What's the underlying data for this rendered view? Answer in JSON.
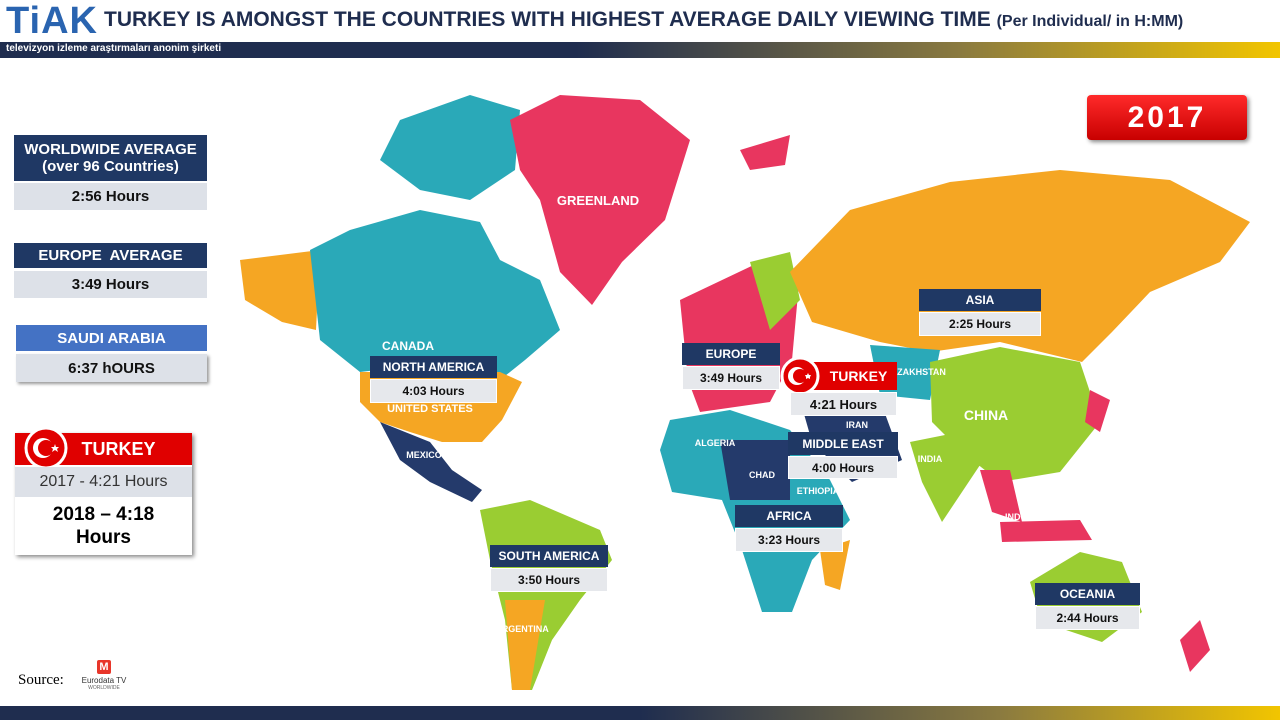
{
  "header": {
    "logo": "TiAK",
    "logo_subtitle": "televizyon izleme araştırmaları anonim şirketi",
    "title": "TURKEY IS AMONGST THE COUNTRIES WITH HIGHEST AVERAGE DAILY VIEWING TIME",
    "title_note": "(Per Individual/ in H:MM)"
  },
  "year": "2017",
  "sidebar": [
    {
      "label": "WORLDWIDE AVERAGE",
      "note": "(over 96 Countries)",
      "value": "2:56 Hours"
    },
    {
      "label": "EUROPE  AVERAGE",
      "value": "3:49 Hours"
    },
    {
      "label": "SAUDI ARABIA",
      "value": "6:37 hOURS"
    }
  ],
  "turkey_box": {
    "label": "TURKEY",
    "line1": "2017 - 4:21 Hours",
    "line2": "2018 – 4:18 Hours"
  },
  "regions": [
    {
      "name": "NORTH AMERICA",
      "value": "4:03 Hours"
    },
    {
      "name": "EUROPE",
      "value": "3:49 Hours"
    },
    {
      "name": "TURKEY",
      "value": "4:21 Hours"
    },
    {
      "name": "MIDDLE EAST",
      "value": "4:00 Hours"
    },
    {
      "name": "ASIA",
      "value": "2:25 Hours"
    },
    {
      "name": "AFRICA",
      "value": "3:23 Hours"
    },
    {
      "name": "SOUTH AMERICA",
      "value": "3:50 Hours"
    },
    {
      "name": "OCEANIA",
      "value": "2:44 Hours"
    }
  ],
  "map_labels": [
    "GREENLAND",
    "CANADA",
    "UNITED STATES",
    "CHINA",
    "INDIA",
    "KAZAKHSTAN",
    "CHAD",
    "ALGERIA",
    "ETHIOPIA",
    "IRAN",
    "MEXICO",
    "ARGENTINA",
    "INDONESIA"
  ],
  "source": {
    "label": "Source:",
    "name": "Eurodata TV",
    "sub": "WORLDWIDE"
  }
}
